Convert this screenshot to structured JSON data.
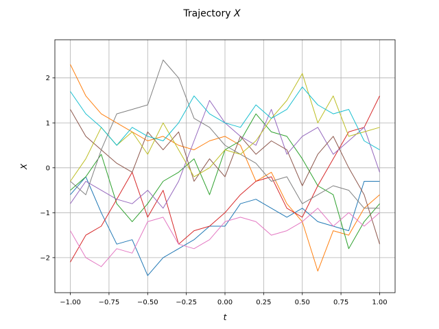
{
  "chart_data": {
    "type": "line",
    "title": "Trajectory",
    "title_var": "X",
    "xlabel": "t",
    "ylabel": "X",
    "xlim": [
      -1.1,
      1.1
    ],
    "ylim": [
      -2.78,
      2.85
    ],
    "grid": true,
    "x_ticks": [
      -1.0,
      -0.75,
      -0.5,
      -0.25,
      0.0,
      0.25,
      0.5,
      0.75,
      1.0
    ],
    "x_tick_labels": [
      "−1.00",
      "−0.75",
      "−0.50",
      "−0.25",
      "0.00",
      "0.25",
      "0.50",
      "0.75",
      "1.00"
    ],
    "y_ticks": [
      -2,
      -1,
      0,
      1,
      2
    ],
    "y_tick_labels": [
      "−2",
      "−1",
      "0",
      "1",
      "2"
    ],
    "x": [
      -1.0,
      -0.9,
      -0.8,
      -0.7,
      -0.6,
      -0.5,
      -0.4,
      -0.3,
      -0.2,
      -0.1,
      0.0,
      0.1,
      0.2,
      0.3,
      0.4,
      0.5,
      0.6,
      0.7,
      0.8,
      0.9,
      1.0
    ],
    "series": [
      {
        "color": "#1f77b4",
        "values": [
          -0.6,
          -0.2,
          -1.0,
          -1.7,
          -1.6,
          -2.4,
          -2.0,
          -1.8,
          -1.6,
          -1.3,
          -1.3,
          -0.8,
          -0.7,
          -0.9,
          -1.1,
          -0.9,
          -1.2,
          -1.3,
          -1.4,
          -0.3,
          -0.3
        ]
      },
      {
        "color": "#ff7f0e",
        "values": [
          2.3,
          1.6,
          1.2,
          1.0,
          0.8,
          0.6,
          0.7,
          0.5,
          0.4,
          0.6,
          0.7,
          0.5,
          -0.3,
          -0.1,
          -0.8,
          -1.2,
          -2.3,
          -1.4,
          -1.5,
          -0.9,
          -0.6
        ]
      },
      {
        "color": "#2ca02c",
        "values": [
          -0.5,
          -0.2,
          0.3,
          -0.8,
          -1.2,
          -0.8,
          -0.3,
          -0.1,
          0.2,
          -0.6,
          0.4,
          0.6,
          1.2,
          0.8,
          0.7,
          0.2,
          -0.4,
          -0.6,
          -1.8,
          -1.2,
          -0.8
        ]
      },
      {
        "color": "#d62728",
        "values": [
          -2.1,
          -1.5,
          -1.3,
          -0.7,
          -0.1,
          -1.1,
          -0.5,
          -1.7,
          -1.4,
          -1.3,
          -1.0,
          -0.6,
          -0.3,
          -0.2,
          -0.9,
          -1.1,
          -0.4,
          0.2,
          0.8,
          0.9,
          1.6
        ]
      },
      {
        "color": "#9467bd",
        "values": [
          -0.8,
          -0.3,
          -0.5,
          -0.7,
          -0.8,
          -0.5,
          -0.9,
          -0.3,
          0.6,
          1.5,
          1.0,
          0.7,
          0.5,
          1.3,
          0.3,
          0.7,
          0.9,
          0.3,
          0.6,
          0.9,
          -0.1
        ]
      },
      {
        "color": "#8c564b",
        "values": [
          1.3,
          0.7,
          0.4,
          0.1,
          -0.1,
          0.8,
          0.4,
          0.8,
          -0.3,
          0.2,
          -0.2,
          0.7,
          0.3,
          0.6,
          0.4,
          -0.4,
          0.3,
          0.7,
          0.0,
          -0.6,
          -1.7
        ]
      },
      {
        "color": "#e377c2",
        "values": [
          -1.4,
          -2.0,
          -2.2,
          -1.8,
          -1.9,
          -1.2,
          -1.1,
          -1.7,
          -1.8,
          -1.6,
          -1.2,
          -1.1,
          -1.2,
          -1.5,
          -1.4,
          -1.2,
          -0.9,
          -1.3,
          -1.0,
          -1.3,
          -1.0
        ]
      },
      {
        "color": "#7f7f7f",
        "values": [
          -0.3,
          -0.6,
          0.4,
          1.2,
          1.3,
          1.4,
          2.4,
          2.0,
          1.1,
          0.9,
          0.5,
          0.3,
          0.1,
          -0.3,
          -0.2,
          -0.8,
          -0.6,
          -0.4,
          -0.5,
          -0.9,
          -0.9
        ]
      },
      {
        "color": "#bcbd22",
        "values": [
          -0.3,
          0.2,
          0.9,
          0.5,
          0.8,
          0.3,
          1.0,
          0.4,
          -0.2,
          0.0,
          0.4,
          0.3,
          0.6,
          1.1,
          1.5,
          2.1,
          1.0,
          1.6,
          0.7,
          0.8,
          0.9
        ]
      },
      {
        "color": "#17becf",
        "values": [
          1.7,
          1.2,
          0.9,
          0.5,
          0.9,
          0.7,
          0.6,
          1.0,
          1.6,
          1.2,
          1.0,
          0.9,
          1.4,
          1.1,
          1.3,
          1.8,
          1.4,
          1.2,
          1.3,
          0.6,
          0.4
        ]
      }
    ]
  }
}
